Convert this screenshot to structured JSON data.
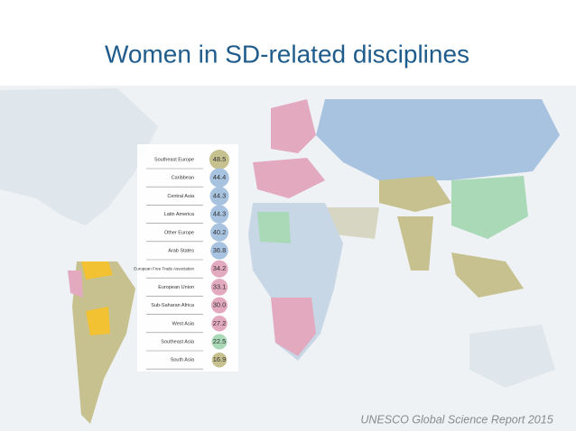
{
  "header": {
    "title": "Women in SD-related disciplines"
  },
  "regions": [
    {
      "name": "Southeast Europe",
      "value": "48.5",
      "color": "#c7c08f"
    },
    {
      "name": "Caribbean",
      "value": "44.4",
      "color": "#a8c3e0"
    },
    {
      "name": "Central Asia",
      "value": "44.3",
      "color": "#a8c3e0"
    },
    {
      "name": "Latin America",
      "value": "44.3",
      "color": "#a8c3e0"
    },
    {
      "name": "Other Europe",
      "value": "40.2",
      "color": "#a8c3e0"
    },
    {
      "name": "Arab States",
      "value": "36.8",
      "color": "#a8c3e0"
    },
    {
      "name": "European Free Trade Association",
      "value": "34.2",
      "color": "#e2a9bf"
    },
    {
      "name": "European Union",
      "value": "33.1",
      "color": "#e2a9bf"
    },
    {
      "name": "Sub-Saharan Africa",
      "value": "30.0",
      "color": "#e2a9bf"
    },
    {
      "name": "West Asia",
      "value": "27.2",
      "color": "#e2a9bf"
    },
    {
      "name": "Southeast Asia",
      "value": "22.5",
      "color": "#a9d9b6"
    },
    {
      "name": "South Asia",
      "value": "16.9",
      "color": "#c7c08f"
    }
  ],
  "source": "UNESCO Global Science Report 2015"
}
